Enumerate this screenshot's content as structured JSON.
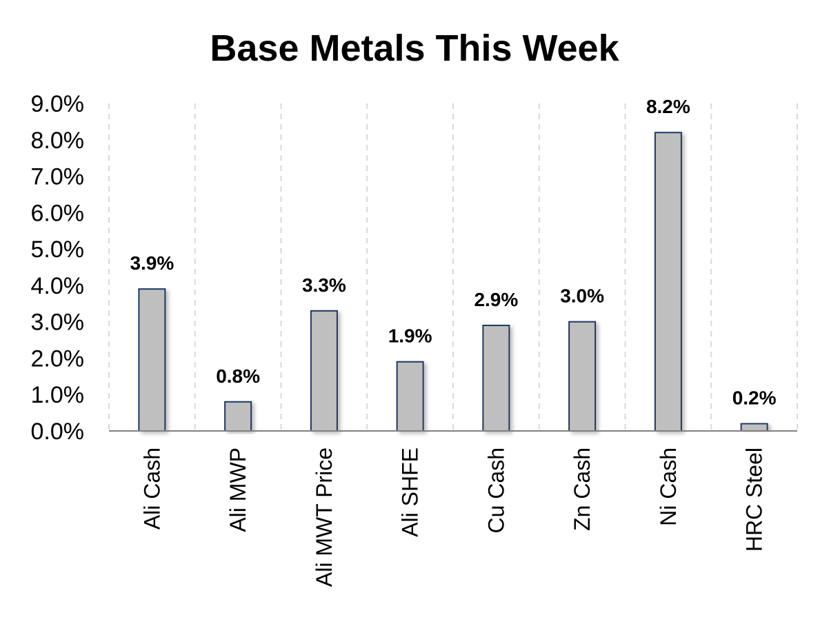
{
  "chart_data": {
    "type": "bar",
    "title": "Base Metals This Week",
    "xlabel": "",
    "ylabel": "",
    "categories": [
      "Ali Cash",
      "Ali MWP",
      "Ali MWT Price",
      "Ali SHFE",
      "Cu Cash",
      "Zn Cash",
      "Ni Cash",
      "HRC Steel"
    ],
    "values": [
      3.9,
      0.8,
      3.3,
      1.9,
      2.9,
      3.0,
      8.2,
      0.2
    ],
    "data_labels": [
      "3.9%",
      "0.8%",
      "3.3%",
      "1.9%",
      "2.9%",
      "3.0%",
      "8.2%",
      "0.2%"
    ],
    "ylim": [
      0,
      9
    ],
    "yticks": [
      0,
      1,
      2,
      3,
      4,
      5,
      6,
      7,
      8,
      9
    ],
    "ytick_labels": [
      "0.0%",
      "1.0%",
      "2.0%",
      "3.0%",
      "4.0%",
      "5.0%",
      "6.0%",
      "7.0%",
      "8.0%",
      "9.0%"
    ],
    "grid": "vertical-dashed",
    "legend": "none",
    "colors": {
      "bar_fill": "#bfbfbf",
      "bar_stroke": "#1f3864",
      "grid": "#d9d9d9",
      "axis": "#808080"
    }
  }
}
